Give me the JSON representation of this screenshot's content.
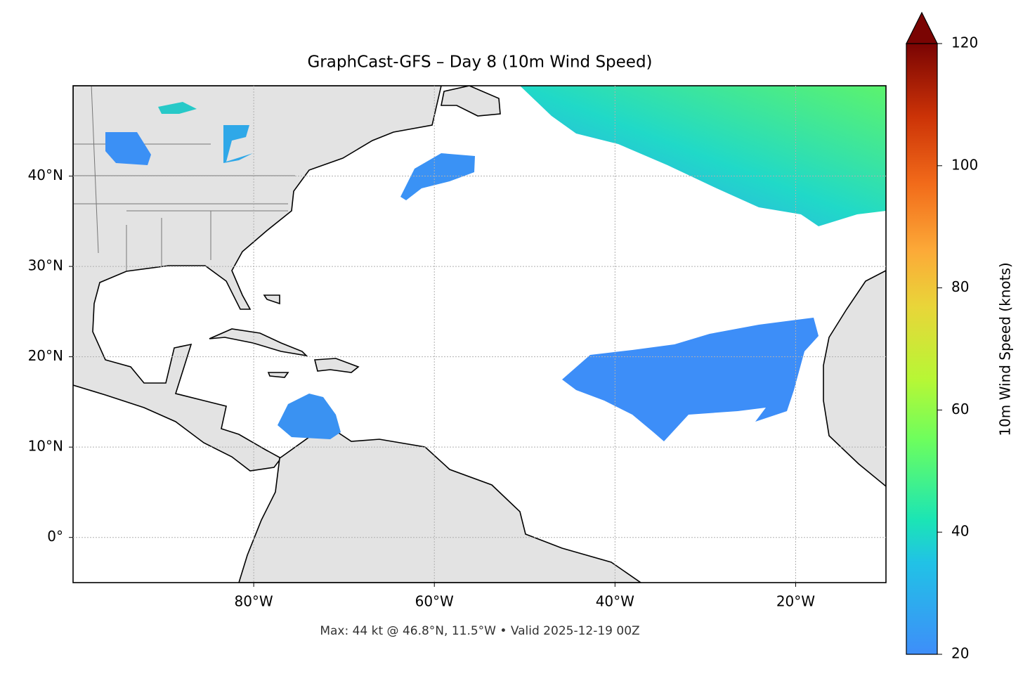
{
  "chart_data": {
    "type": "map",
    "title": "GraphCast-GFS – Day 8 (10m Wind Speed)",
    "annotation": "Max: 44 kt @ 46.8°N, 11.5°W • Valid 2025-12-19 00Z",
    "xlim": [
      -100,
      -10
    ],
    "ylim": [
      -5,
      50
    ],
    "xticks": [
      {
        "value": -80,
        "label": "80°W"
      },
      {
        "value": -60,
        "label": "60°W"
      },
      {
        "value": -40,
        "label": "40°W"
      },
      {
        "value": -20,
        "label": "20°W"
      }
    ],
    "yticks": [
      {
        "value": 0,
        "label": "0°"
      },
      {
        "value": 10,
        "label": "10°N"
      },
      {
        "value": 20,
        "label": "20°N"
      },
      {
        "value": 30,
        "label": "30°N"
      },
      {
        "value": 40,
        "label": "40°N"
      }
    ],
    "grid": true,
    "colorbar": {
      "label": "10m Wind Speed (knots)",
      "lim": [
        20,
        120
      ],
      "ticks": [
        20,
        40,
        60,
        80,
        100,
        120
      ]
    }
  }
}
